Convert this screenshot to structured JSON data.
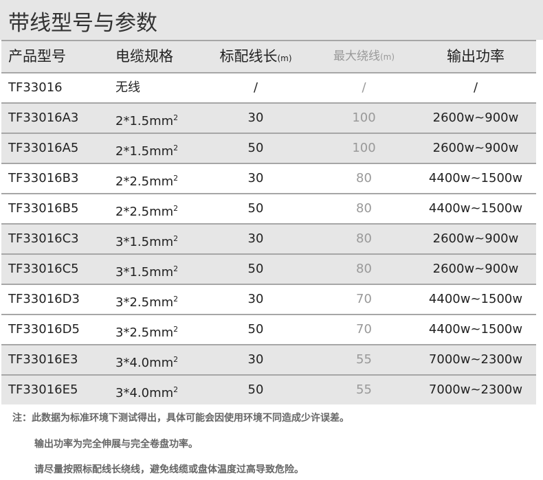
{
  "title": "带线型号与参数",
  "headers": {
    "model": "产品型号",
    "spec": "电缆规格",
    "length": "标配线长",
    "length_unit": "(m)",
    "max": "最大绕线",
    "max_unit": "(m)",
    "power": "输出功率"
  },
  "rows": [
    {
      "model": "TF33016",
      "spec": "无线",
      "sup": "",
      "length": "/",
      "max": "/",
      "power": "/"
    },
    {
      "model": "TF33016A3",
      "spec": "2*1.5mm",
      "sup": "2",
      "length": "30",
      "max": "100",
      "power": "2600w~900w"
    },
    {
      "model": "TF33016A5",
      "spec": "2*1.5mm",
      "sup": "2",
      "length": "50",
      "max": "100",
      "power": "2600w~900w"
    },
    {
      "model": "TF33016B3",
      "spec": "2*2.5mm",
      "sup": "2",
      "length": "30",
      "max": "80",
      "power": "4400w~1500w"
    },
    {
      "model": "TF33016B5",
      "spec": "2*2.5mm",
      "sup": "2",
      "length": "50",
      "max": "80",
      "power": "4400w~1500w"
    },
    {
      "model": "TF33016C3",
      "spec": "3*1.5mm",
      "sup": "2",
      "length": "30",
      "max": "80",
      "power": "2600w~900w"
    },
    {
      "model": "TF33016C5",
      "spec": "3*1.5mm",
      "sup": "2",
      "length": "50",
      "max": "80",
      "power": "2600w~900w"
    },
    {
      "model": "TF33016D3",
      "spec": "3*2.5mm",
      "sup": "2",
      "length": "30",
      "max": "70",
      "power": "4400w~1500w"
    },
    {
      "model": "TF33016D5",
      "spec": "3*2.5mm",
      "sup": "2",
      "length": "50",
      "max": "70",
      "power": "4400w~1500w"
    },
    {
      "model": "TF33016E3",
      "spec": "3*4.0mm",
      "sup": "2",
      "length": "30",
      "max": "55",
      "power": "7000w~2300w"
    },
    {
      "model": "TF33016E5",
      "spec": "3*4.0mm",
      "sup": "2",
      "length": "50",
      "max": "55",
      "power": "7000w~2300w"
    }
  ],
  "notes": [
    "注：此数据为标准环境下测试得出，具体可能会因使用环境不同造成少许误差。",
    "输出功率为完全伸展与完全卷盘功率。",
    "请尽量按照标配线长绕线，避免线缆或盘体温度过高导致危险。"
  ],
  "colors": {
    "band": "#e6e6e6",
    "line": "#a6a6a6",
    "muted": "#999999",
    "note": "#666666"
  }
}
